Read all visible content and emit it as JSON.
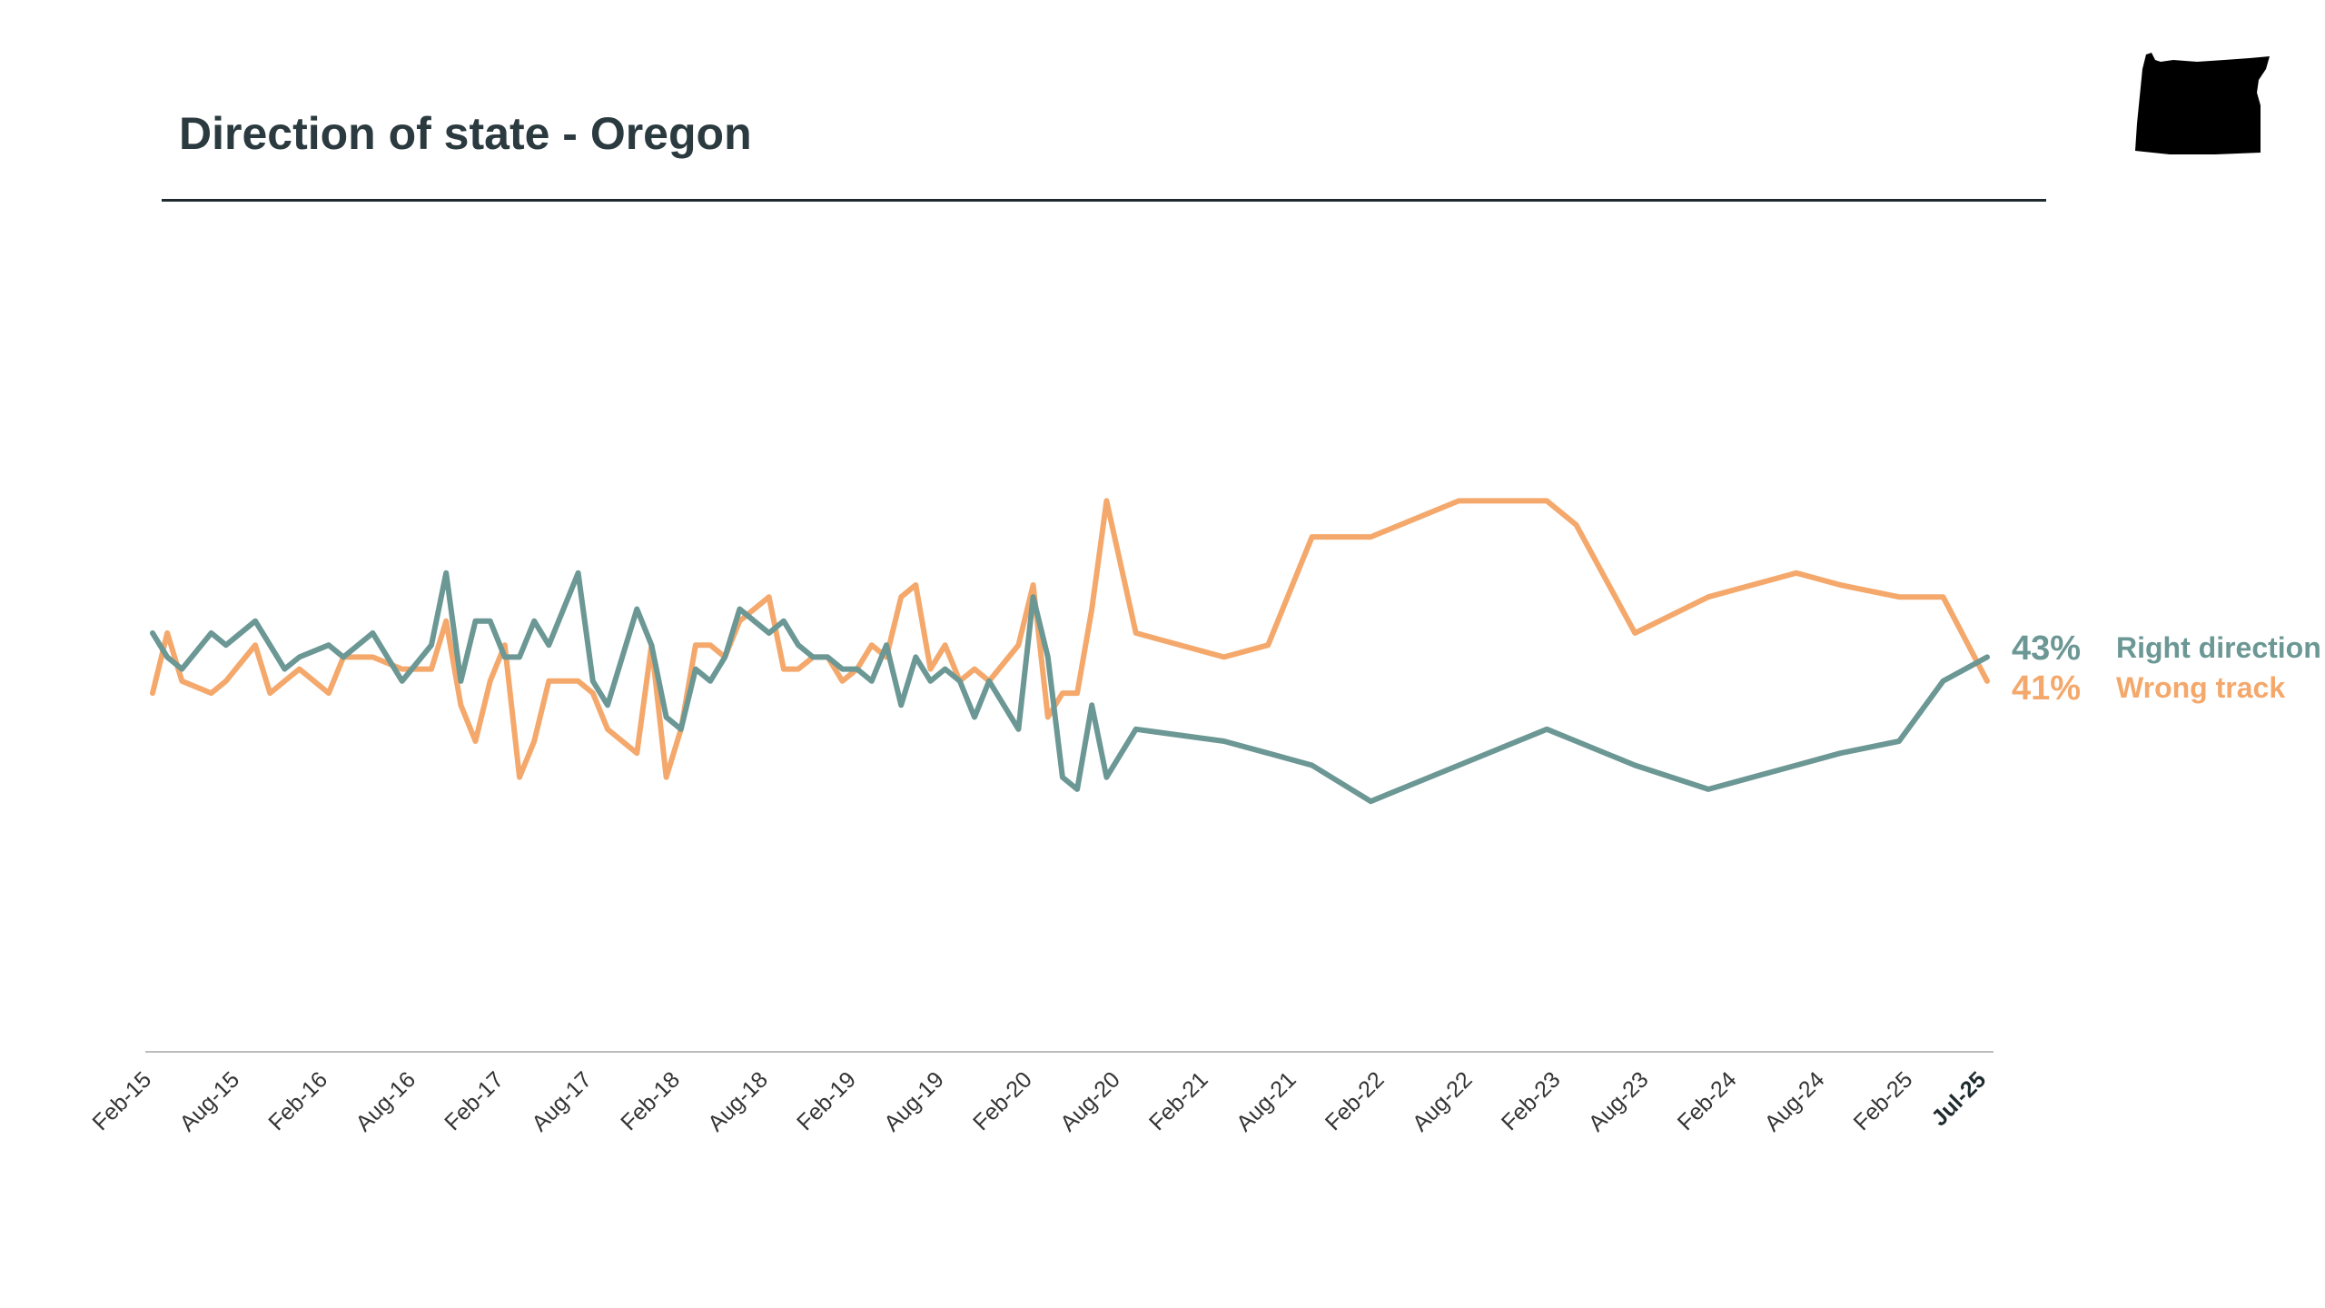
{
  "chart_data": {
    "type": "line",
    "title": "Direction of state - Oregon",
    "xlabel": "",
    "ylabel": "",
    "ylim": [
      10,
      75
    ],
    "x_range": [
      "2015-02",
      "2025-07"
    ],
    "grid": false,
    "legend": "end-labels",
    "tick_labels": [
      "Feb-15",
      "Aug-15",
      "Feb-16",
      "Aug-16",
      "Feb-17",
      "Aug-17",
      "Feb-18",
      "Aug-18",
      "Feb-19",
      "Aug-19",
      "Feb-20",
      "Aug-20",
      "Feb-21",
      "Aug-21",
      "Feb-22",
      "Aug-22",
      "Feb-23",
      "Aug-23",
      "Feb-24",
      "Aug-24",
      "Feb-25",
      "Jul-25"
    ],
    "series": [
      {
        "name": "Right direction",
        "color": "#6b9794",
        "end_label": "43%",
        "x": [
          "2015-02",
          "2015-03",
          "2015-04",
          "2015-06",
          "2015-07",
          "2015-09",
          "2015-10",
          "2015-11",
          "2015-12",
          "2016-02",
          "2016-03",
          "2016-04",
          "2016-05",
          "2016-07",
          "2016-09",
          "2016-10",
          "2016-11",
          "2016-12",
          "2017-01",
          "2017-02",
          "2017-03",
          "2017-04",
          "2017-05",
          "2017-07",
          "2017-08",
          "2017-09",
          "2017-11",
          "2017-12",
          "2018-01",
          "2018-02",
          "2018-03",
          "2018-04",
          "2018-05",
          "2018-06",
          "2018-08",
          "2018-09",
          "2018-10",
          "2018-11",
          "2018-12",
          "2019-01",
          "2019-02",
          "2019-03",
          "2019-04",
          "2019-05",
          "2019-06",
          "2019-07",
          "2019-08",
          "2019-09",
          "2019-10",
          "2019-11",
          "2020-01",
          "2020-02",
          "2020-03",
          "2020-04",
          "2020-05",
          "2020-06",
          "2020-07",
          "2020-09",
          "2021-03",
          "2021-06",
          "2021-09",
          "2022-01",
          "2022-07",
          "2023-01",
          "2023-03",
          "2023-07",
          "2023-12",
          "2024-06",
          "2024-09",
          "2025-01",
          "2025-04",
          "2025-07"
        ],
        "values": [
          45,
          43,
          42,
          45,
          44,
          46,
          44,
          42,
          43,
          44,
          43,
          44,
          45,
          41,
          44,
          50,
          41,
          46,
          46,
          43,
          43,
          46,
          44,
          50,
          41,
          39,
          47,
          44,
          38,
          37,
          42,
          41,
          43,
          47,
          45,
          46,
          44,
          43,
          43,
          42,
          42,
          41,
          44,
          39,
          43,
          41,
          42,
          41,
          38,
          41,
          37,
          48,
          43,
          33,
          32,
          39,
          33,
          37,
          36,
          35,
          34,
          31,
          34,
          37,
          36,
          34,
          32,
          34,
          35,
          36,
          41,
          43
        ]
      },
      {
        "name": "Wrong track",
        "color": "#f4a86b",
        "end_label": "41%",
        "x": [
          "2015-02",
          "2015-03",
          "2015-04",
          "2015-06",
          "2015-07",
          "2015-09",
          "2015-10",
          "2015-11",
          "2015-12",
          "2016-02",
          "2016-03",
          "2016-04",
          "2016-05",
          "2016-07",
          "2016-09",
          "2016-10",
          "2016-11",
          "2016-12",
          "2017-01",
          "2017-02",
          "2017-03",
          "2017-04",
          "2017-05",
          "2017-07",
          "2017-08",
          "2017-09",
          "2017-11",
          "2017-12",
          "2018-01",
          "2018-02",
          "2018-03",
          "2018-04",
          "2018-05",
          "2018-06",
          "2018-08",
          "2018-09",
          "2018-10",
          "2018-11",
          "2018-12",
          "2019-01",
          "2019-02",
          "2019-03",
          "2019-04",
          "2019-05",
          "2019-06",
          "2019-07",
          "2019-08",
          "2019-09",
          "2019-10",
          "2019-11",
          "2020-01",
          "2020-02",
          "2020-03",
          "2020-04",
          "2020-05",
          "2020-06",
          "2020-07",
          "2020-09",
          "2021-03",
          "2021-06",
          "2021-09",
          "2022-01",
          "2022-07",
          "2023-01",
          "2023-03",
          "2023-07",
          "2023-12",
          "2024-06",
          "2024-09",
          "2025-01",
          "2025-04",
          "2025-07"
        ],
        "values": [
          40,
          45,
          41,
          40,
          41,
          44,
          40,
          41,
          42,
          40,
          43,
          43,
          43,
          42,
          42,
          46,
          39,
          36,
          41,
          44,
          33,
          36,
          41,
          41,
          40,
          37,
          35,
          44,
          33,
          37,
          44,
          44,
          43,
          46,
          48,
          42,
          42,
          43,
          43,
          41,
          42,
          44,
          43,
          48,
          49,
          42,
          44,
          41,
          42,
          41,
          44,
          49,
          38,
          40,
          40,
          47,
          56,
          45,
          43,
          44,
          53,
          53,
          56,
          56,
          54,
          45,
          48,
          50,
          49,
          48,
          48,
          41
        ]
      }
    ]
  }
}
